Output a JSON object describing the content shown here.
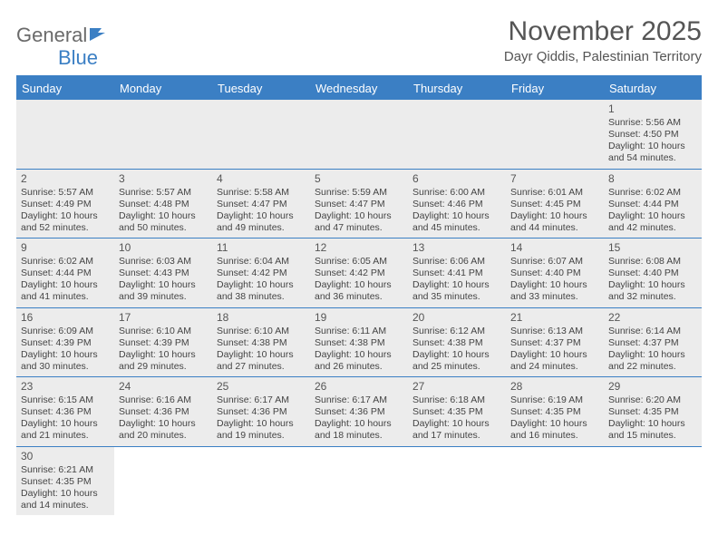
{
  "logo": {
    "text1": "General",
    "text2": "Blue"
  },
  "title": "November 2025",
  "subtitle": "Dayr Qiddis, Palestinian Territory",
  "colors": {
    "header_bg": "#3b7fc4",
    "header_text": "#ffffff",
    "cell_bg": "#ececec",
    "border": "#3b7fc4"
  },
  "days": [
    "Sunday",
    "Monday",
    "Tuesday",
    "Wednesday",
    "Thursday",
    "Friday",
    "Saturday"
  ],
  "weeks": [
    [
      null,
      null,
      null,
      null,
      null,
      null,
      {
        "n": "1",
        "sr": "5:56 AM",
        "ss": "4:50 PM",
        "dl": "10 hours and 54 minutes."
      }
    ],
    [
      {
        "n": "2",
        "sr": "5:57 AM",
        "ss": "4:49 PM",
        "dl": "10 hours and 52 minutes."
      },
      {
        "n": "3",
        "sr": "5:57 AM",
        "ss": "4:48 PM",
        "dl": "10 hours and 50 minutes."
      },
      {
        "n": "4",
        "sr": "5:58 AM",
        "ss": "4:47 PM",
        "dl": "10 hours and 49 minutes."
      },
      {
        "n": "5",
        "sr": "5:59 AM",
        "ss": "4:47 PM",
        "dl": "10 hours and 47 minutes."
      },
      {
        "n": "6",
        "sr": "6:00 AM",
        "ss": "4:46 PM",
        "dl": "10 hours and 45 minutes."
      },
      {
        "n": "7",
        "sr": "6:01 AM",
        "ss": "4:45 PM",
        "dl": "10 hours and 44 minutes."
      },
      {
        "n": "8",
        "sr": "6:02 AM",
        "ss": "4:44 PM",
        "dl": "10 hours and 42 minutes."
      }
    ],
    [
      {
        "n": "9",
        "sr": "6:02 AM",
        "ss": "4:44 PM",
        "dl": "10 hours and 41 minutes."
      },
      {
        "n": "10",
        "sr": "6:03 AM",
        "ss": "4:43 PM",
        "dl": "10 hours and 39 minutes."
      },
      {
        "n": "11",
        "sr": "6:04 AM",
        "ss": "4:42 PM",
        "dl": "10 hours and 38 minutes."
      },
      {
        "n": "12",
        "sr": "6:05 AM",
        "ss": "4:42 PM",
        "dl": "10 hours and 36 minutes."
      },
      {
        "n": "13",
        "sr": "6:06 AM",
        "ss": "4:41 PM",
        "dl": "10 hours and 35 minutes."
      },
      {
        "n": "14",
        "sr": "6:07 AM",
        "ss": "4:40 PM",
        "dl": "10 hours and 33 minutes."
      },
      {
        "n": "15",
        "sr": "6:08 AM",
        "ss": "4:40 PM",
        "dl": "10 hours and 32 minutes."
      }
    ],
    [
      {
        "n": "16",
        "sr": "6:09 AM",
        "ss": "4:39 PM",
        "dl": "10 hours and 30 minutes."
      },
      {
        "n": "17",
        "sr": "6:10 AM",
        "ss": "4:39 PM",
        "dl": "10 hours and 29 minutes."
      },
      {
        "n": "18",
        "sr": "6:10 AM",
        "ss": "4:38 PM",
        "dl": "10 hours and 27 minutes."
      },
      {
        "n": "19",
        "sr": "6:11 AM",
        "ss": "4:38 PM",
        "dl": "10 hours and 26 minutes."
      },
      {
        "n": "20",
        "sr": "6:12 AM",
        "ss": "4:38 PM",
        "dl": "10 hours and 25 minutes."
      },
      {
        "n": "21",
        "sr": "6:13 AM",
        "ss": "4:37 PM",
        "dl": "10 hours and 24 minutes."
      },
      {
        "n": "22",
        "sr": "6:14 AM",
        "ss": "4:37 PM",
        "dl": "10 hours and 22 minutes."
      }
    ],
    [
      {
        "n": "23",
        "sr": "6:15 AM",
        "ss": "4:36 PM",
        "dl": "10 hours and 21 minutes."
      },
      {
        "n": "24",
        "sr": "6:16 AM",
        "ss": "4:36 PM",
        "dl": "10 hours and 20 minutes."
      },
      {
        "n": "25",
        "sr": "6:17 AM",
        "ss": "4:36 PM",
        "dl": "10 hours and 19 minutes."
      },
      {
        "n": "26",
        "sr": "6:17 AM",
        "ss": "4:36 PM",
        "dl": "10 hours and 18 minutes."
      },
      {
        "n": "27",
        "sr": "6:18 AM",
        "ss": "4:35 PM",
        "dl": "10 hours and 17 minutes."
      },
      {
        "n": "28",
        "sr": "6:19 AM",
        "ss": "4:35 PM",
        "dl": "10 hours and 16 minutes."
      },
      {
        "n": "29",
        "sr": "6:20 AM",
        "ss": "4:35 PM",
        "dl": "10 hours and 15 minutes."
      }
    ],
    [
      {
        "n": "30",
        "sr": "6:21 AM",
        "ss": "4:35 PM",
        "dl": "10 hours and 14 minutes."
      },
      null,
      null,
      null,
      null,
      null,
      null
    ]
  ],
  "labels": {
    "sunrise": "Sunrise: ",
    "sunset": "Sunset: ",
    "daylight": "Daylight: "
  }
}
